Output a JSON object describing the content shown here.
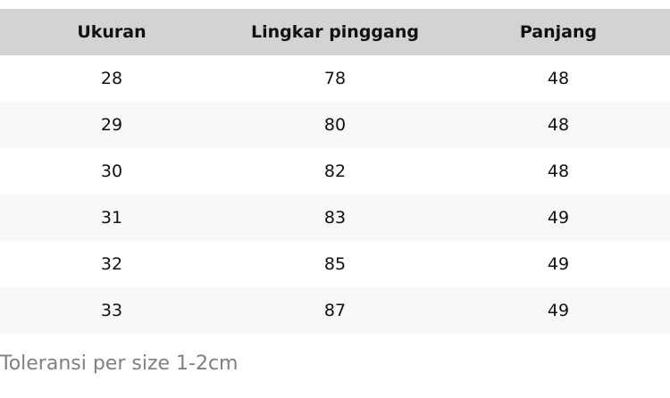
{
  "table": {
    "headers": [
      "Ukuran",
      "Lingkar pinggang",
      "Panjang"
    ],
    "rows": [
      [
        "28",
        "78",
        "48"
      ],
      [
        "29",
        "80",
        "48"
      ],
      [
        "30",
        "82",
        "48"
      ],
      [
        "31",
        "83",
        "49"
      ],
      [
        "32",
        "85",
        "49"
      ],
      [
        "33",
        "87",
        "49"
      ]
    ]
  },
  "note": "Toleransi per size 1-2cm"
}
